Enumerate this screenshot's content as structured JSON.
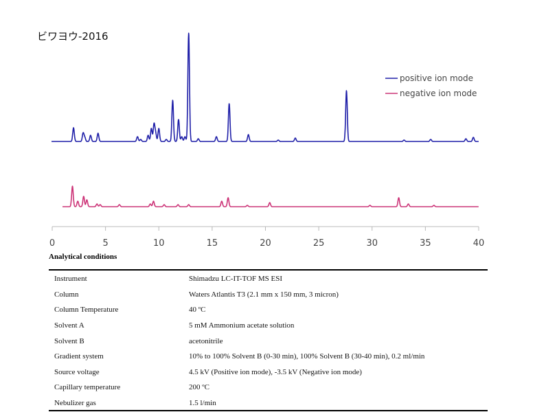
{
  "title": "ビワヨウ-2016",
  "chart_data": {
    "type": "line",
    "title": "ビワヨウ-2016",
    "xlabel": "",
    "ylabel": "",
    "xlim": [
      0,
      40
    ],
    "x_ticks": [
      "0",
      "5",
      "10",
      "15",
      "20",
      "25",
      "30",
      "35",
      "40"
    ],
    "legend_position": "top-right",
    "grid": false,
    "series": [
      {
        "name": "positive ion mode",
        "color": "#1f1fa8",
        "peaks": [
          {
            "rt": 2.0,
            "height": 20
          },
          {
            "rt": 2.9,
            "height": 12
          },
          {
            "rt": 3.05,
            "height": 6
          },
          {
            "rt": 3.6,
            "height": 9
          },
          {
            "rt": 4.3,
            "height": 12
          },
          {
            "rt": 8.0,
            "height": 7
          },
          {
            "rt": 8.3,
            "height": 3
          },
          {
            "rt": 9.0,
            "height": 9
          },
          {
            "rt": 9.3,
            "height": 19
          },
          {
            "rt": 9.55,
            "height": 25
          },
          {
            "rt": 9.7,
            "height": 12
          },
          {
            "rt": 10.0,
            "height": 19
          },
          {
            "rt": 10.7,
            "height": 3
          },
          {
            "rt": 11.3,
            "height": 60
          },
          {
            "rt": 11.85,
            "height": 32
          },
          {
            "rt": 12.15,
            "height": 7
          },
          {
            "rt": 12.45,
            "height": 7
          },
          {
            "rt": 12.8,
            "height": 158
          },
          {
            "rt": 13.7,
            "height": 4
          },
          {
            "rt": 15.4,
            "height": 7
          },
          {
            "rt": 16.6,
            "height": 55
          },
          {
            "rt": 18.4,
            "height": 10
          },
          {
            "rt": 21.2,
            "height": 2
          },
          {
            "rt": 22.8,
            "height": 5
          },
          {
            "rt": 27.6,
            "height": 74
          },
          {
            "rt": 33.0,
            "height": 2
          },
          {
            "rt": 35.5,
            "height": 3
          },
          {
            "rt": 38.8,
            "height": 4
          },
          {
            "rt": 39.5,
            "height": 6
          }
        ]
      },
      {
        "name": "negative ion mode",
        "color": "#cc3377",
        "peaks": [
          {
            "rt": 1.9,
            "height": 30
          },
          {
            "rt": 2.4,
            "height": 8
          },
          {
            "rt": 2.95,
            "height": 15
          },
          {
            "rt": 3.25,
            "height": 10
          },
          {
            "rt": 4.2,
            "height": 4
          },
          {
            "rt": 4.5,
            "height": 3
          },
          {
            "rt": 6.3,
            "height": 3
          },
          {
            "rt": 9.2,
            "height": 4
          },
          {
            "rt": 9.5,
            "height": 8
          },
          {
            "rt": 10.5,
            "height": 3
          },
          {
            "rt": 11.8,
            "height": 3
          },
          {
            "rt": 12.8,
            "height": 3
          },
          {
            "rt": 15.9,
            "height": 8
          },
          {
            "rt": 16.5,
            "height": 13
          },
          {
            "rt": 18.3,
            "height": 2
          },
          {
            "rt": 20.4,
            "height": 6
          },
          {
            "rt": 29.8,
            "height": 2
          },
          {
            "rt": 32.5,
            "height": 13
          },
          {
            "rt": 33.4,
            "height": 4
          },
          {
            "rt": 35.8,
            "height": 2
          }
        ]
      }
    ]
  },
  "conditions": {
    "title": "Analytical conditions",
    "rows": [
      {
        "key": "Instrument",
        "value": "Shimadzu LC-IT-TOF MS ESI"
      },
      {
        "key": "Column",
        "value": "Waters Atlantis T3 (2.1 mm x 150 mm, 3 micron)"
      },
      {
        "key": "Column Temperature",
        "value": "40 ºC"
      },
      {
        "key": "Solvent A",
        "value": "5 mM Ammonium acetate solution"
      },
      {
        "key": "Solvent B",
        "value": "acetonitrile"
      },
      {
        "key": "Gradient system",
        "value": "10% to 100% Solvent B (0-30 min), 100% Solvent B (30-40 min), 0.2 ml/min"
      },
      {
        "key": "Source voltage",
        "value": "4.5 kV (Positive ion mode), -3.5 kV (Negative ion mode)"
      },
      {
        "key": "Capillary temperature",
        "value": "200 ºC"
      },
      {
        "key": "Nebulizer gas",
        "value": "1.5 l/min"
      }
    ]
  }
}
